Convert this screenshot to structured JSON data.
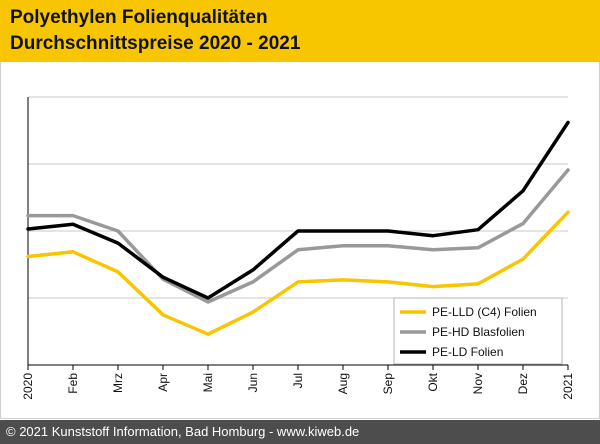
{
  "header": {
    "title_line1": "Polyethylen Folienqualitäten",
    "title_line2": "Durchschnittspreise 2020 - 2021"
  },
  "footer": {
    "copyright": "© 2021 Kunststoff Information, Bad Homburg - www.kiweb.de"
  },
  "colors": {
    "header_bg": "#f7c600",
    "pe_lld": "#f7c600",
    "pe_hd": "#999999",
    "pe_ld": "#000000"
  },
  "chart_data": {
    "type": "line",
    "title": "Polyethylen Folienqualitäten Durchschnittspreise 2020 - 2021",
    "xlabel": "",
    "ylabel": "",
    "categories": [
      "2020",
      "Feb",
      "Mrz",
      "Apr",
      "Mai",
      "Jun",
      "Jul",
      "Aug",
      "Sep",
      "Okt",
      "Nov",
      "Dez",
      "2021"
    ],
    "ylim": [
      0,
      40
    ],
    "y_gridlines": [
      10,
      20,
      30,
      40
    ],
    "y_tick_labels_shown": false,
    "legend_position": "bottom-right",
    "series": [
      {
        "name": "PE-LLD (C4) Folien",
        "color": "#f7c600",
        "values": [
          16.2,
          16.9,
          13.9,
          7.5,
          4.6,
          7.9,
          12.4,
          12.7,
          12.4,
          11.7,
          12.1,
          15.8,
          22.8
        ]
      },
      {
        "name": "PE-HD Blasfolien",
        "color": "#999999",
        "values": [
          22.3,
          22.3,
          20.0,
          12.8,
          9.4,
          12.4,
          17.2,
          17.8,
          17.8,
          17.2,
          17.5,
          21.1,
          29.1
        ]
      },
      {
        "name": "PE-LD Folien",
        "color": "#000000",
        "values": [
          20.3,
          21.0,
          18.2,
          13.1,
          10.0,
          14.2,
          20.0,
          20.0,
          20.0,
          19.3,
          20.2,
          26.0,
          36.2
        ]
      }
    ]
  }
}
